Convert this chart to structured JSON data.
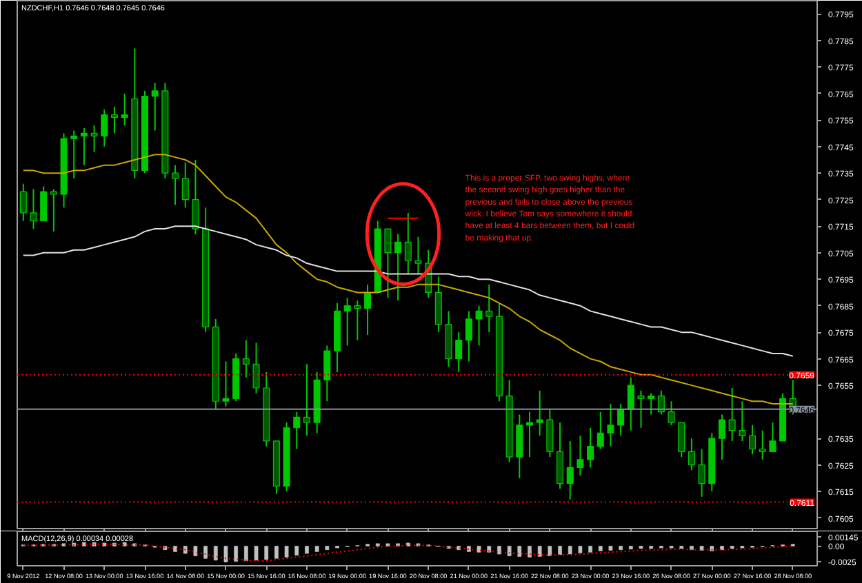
{
  "chart_data": [
    {
      "type": "candlestick",
      "title": "NZDCHF,H1  0.7646 0.7648 0.7645 0.7646",
      "categories": [
        "9 Nov 2012",
        null,
        null,
        null,
        "12 Nov 08:00",
        null,
        null,
        null,
        "13 Nov 00:00",
        null,
        null,
        null,
        "13 Nov 16:00",
        null,
        null,
        null,
        "14 Nov 08:00",
        null,
        null,
        null,
        "15 Nov 00:00",
        null,
        null,
        null,
        "15 Nov 16:00",
        null,
        null,
        null,
        "16 Nov 08:00",
        null,
        null,
        null,
        "19 Nov 00:00",
        null,
        null,
        null,
        "19 Nov 16:00",
        null,
        null,
        null,
        "20 Nov 08:00",
        null,
        null,
        null,
        "21 Nov 00:00",
        null,
        null,
        null,
        "21 Nov 16:00",
        null,
        null,
        null,
        "22 Nov 08:00",
        null,
        null,
        null,
        "23 Nov 00:00",
        null,
        null,
        null,
        "23 Nov 16:00",
        null,
        null,
        null,
        "26 Nov 08:00",
        null,
        null,
        null,
        "27 Nov 00:00",
        null,
        null,
        null,
        "27 Nov 16:00",
        null,
        null,
        null,
        "28 Nov 08:00"
      ],
      "series": [
        {
          "color": "#00c800",
          "ohlc": [
            [
              0.7728,
              0.7731,
              0.7717,
              0.772
            ],
            [
              0.772,
              0.7729,
              0.7714,
              0.7717
            ],
            [
              0.7717,
              0.773,
              0.7717,
              0.7728
            ],
            [
              0.7728,
              0.7729,
              0.7713,
              0.7727
            ],
            [
              0.7727,
              0.775,
              0.7722,
              0.7748
            ],
            [
              0.7748,
              0.7751,
              0.7733,
              0.7749
            ],
            [
              0.7749,
              0.7752,
              0.7738,
              0.775
            ],
            [
              0.775,
              0.7753,
              0.7743,
              0.7749
            ],
            [
              0.7749,
              0.7759,
              0.7745,
              0.7757
            ],
            [
              0.7757,
              0.776,
              0.775,
              0.7756
            ],
            [
              0.7756,
              0.7765,
              0.7753,
              0.7757
            ],
            [
              0.7763,
              0.7782,
              0.7733,
              0.7736
            ],
            [
              0.7736,
              0.7766,
              0.7735,
              0.7764
            ],
            [
              0.7764,
              0.7769,
              0.7751,
              0.7766
            ],
            [
              0.7766,
              0.7769,
              0.7733,
              0.7735
            ],
            [
              0.7735,
              0.7738,
              0.7723,
              0.7733
            ],
            [
              0.7733,
              0.7739,
              0.7722,
              0.7725
            ],
            [
              0.7725,
              0.774,
              0.7712,
              0.7714
            ],
            [
              0.7714,
              0.7722,
              0.7675,
              0.7677
            ],
            [
              0.7677,
              0.768,
              0.7646,
              0.7649
            ],
            [
              0.7649,
              0.7664,
              0.7647,
              0.765
            ],
            [
              0.765,
              0.7667,
              0.7649,
              0.7665
            ],
            [
              0.7665,
              0.7672,
              0.7658,
              0.7663
            ],
            [
              0.7663,
              0.7671,
              0.7652,
              0.7654
            ],
            [
              0.7654,
              0.766,
              0.7632,
              0.7634
            ],
            [
              0.7634,
              0.7634,
              0.7614,
              0.7617
            ],
            [
              0.7617,
              0.7641,
              0.7615,
              0.7639
            ],
            [
              0.7639,
              0.7645,
              0.7631,
              0.7643
            ],
            [
              0.7643,
              0.7663,
              0.7636,
              0.7641
            ],
            [
              0.7641,
              0.766,
              0.7637,
              0.7657
            ],
            [
              0.7657,
              0.767,
              0.7649,
              0.7668
            ],
            [
              0.7668,
              0.7686,
              0.766,
              0.7683
            ],
            [
              0.7683,
              0.7688,
              0.767,
              0.7685
            ],
            [
              0.7685,
              0.7687,
              0.7672,
              0.7684
            ],
            [
              0.7684,
              0.7693,
              0.7674,
              0.769
            ],
            [
              0.769,
              0.7717,
              0.769,
              0.7714
            ],
            [
              0.7714,
              0.7714,
              0.7688,
              0.7705
            ],
            [
              0.7705,
              0.7712,
              0.7687,
              0.7709
            ],
            [
              0.7709,
              0.772,
              0.7697,
              0.7702
            ],
            [
              0.7702,
              0.7711,
              0.7697,
              0.7701
            ],
            [
              0.7701,
              0.7706,
              0.7688,
              0.769
            ],
            [
              0.769,
              0.7696,
              0.7675,
              0.7678
            ],
            [
              0.7678,
              0.7683,
              0.7662,
              0.7665
            ],
            [
              0.7665,
              0.7675,
              0.766,
              0.7672
            ],
            [
              0.7672,
              0.7683,
              0.7664,
              0.768
            ],
            [
              0.768,
              0.7685,
              0.767,
              0.7683
            ],
            [
              0.7683,
              0.7693,
              0.7675,
              0.7681
            ],
            [
              0.7681,
              0.7686,
              0.7649,
              0.7651
            ],
            [
              0.7651,
              0.7657,
              0.7626,
              0.7628
            ],
            [
              0.7628,
              0.7644,
              0.762,
              0.764
            ],
            [
              0.764,
              0.7645,
              0.7628,
              0.7641
            ],
            [
              0.7641,
              0.7653,
              0.7636,
              0.7642
            ],
            [
              0.7642,
              0.7646,
              0.7628,
              0.763
            ],
            [
              0.763,
              0.7641,
              0.7616,
              0.7618
            ],
            [
              0.7618,
              0.7634,
              0.7612,
              0.7624
            ],
            [
              0.7624,
              0.7636,
              0.7621,
              0.7627
            ],
            [
              0.7627,
              0.7639,
              0.7624,
              0.7632
            ],
            [
              0.7632,
              0.7645,
              0.7631,
              0.7637
            ],
            [
              0.7637,
              0.7648,
              0.7632,
              0.764
            ],
            [
              0.764,
              0.7648,
              0.7636,
              0.7646
            ],
            [
              0.7646,
              0.7658,
              0.7638,
              0.7655
            ],
            [
              0.7651,
              0.7653,
              0.7639,
              0.765
            ],
            [
              0.765,
              0.7652,
              0.7644,
              0.7651
            ],
            [
              0.7651,
              0.7653,
              0.7644,
              0.7645
            ],
            [
              0.7645,
              0.7649,
              0.764,
              0.7641
            ],
            [
              0.7641,
              0.7641,
              0.7628,
              0.763
            ],
            [
              0.763,
              0.7635,
              0.7623,
              0.7625
            ],
            [
              0.7625,
              0.7631,
              0.7613,
              0.7618
            ],
            [
              0.7618,
              0.7637,
              0.7615,
              0.7635
            ],
            [
              0.7635,
              0.7644,
              0.7627,
              0.7642
            ],
            [
              0.7642,
              0.7654,
              0.7634,
              0.7638
            ],
            [
              0.7638,
              0.7649,
              0.7634,
              0.7636
            ],
            [
              0.7636,
              0.764,
              0.7629,
              0.7631
            ],
            [
              0.7631,
              0.7638,
              0.7627,
              0.763
            ],
            [
              0.763,
              0.7641,
              0.763,
              0.7634
            ],
            [
              0.7634,
              0.7652,
              0.7634,
              0.765
            ],
            [
              0.765,
              0.7657,
              0.7644,
              0.7646
            ]
          ]
        },
        {
          "type": "line",
          "color": "#c8a800",
          "values": [
            0.7736,
            0.7736,
            0.7735,
            0.7735,
            0.7735,
            0.7736,
            0.7736,
            0.7737,
            0.7738,
            0.7738,
            0.7739,
            0.774,
            0.7741,
            0.7742,
            0.7742,
            0.7741,
            0.774,
            0.7738,
            0.7734,
            0.773,
            0.7726,
            0.7724,
            0.7721,
            0.7718,
            0.7713,
            0.7708,
            0.7705,
            0.7701,
            0.7698,
            0.7695,
            0.7694,
            0.7692,
            0.7691,
            0.769,
            0.769,
            0.769,
            0.7691,
            0.7692,
            0.7692,
            0.7693,
            0.7693,
            0.7693,
            0.7692,
            0.7691,
            0.769,
            0.7689,
            0.7688,
            0.7686,
            0.7684,
            0.7681,
            0.7679,
            0.7676,
            0.7674,
            0.7672,
            0.7669,
            0.7667,
            0.7665,
            0.7664,
            0.7662,
            0.7661,
            0.766,
            0.7659,
            0.7659,
            0.7658,
            0.7657,
            0.7656,
            0.7655,
            0.7654,
            0.7653,
            0.7652,
            0.7651,
            0.765,
            0.7649,
            0.7649,
            0.7648,
            0.7648,
            0.7648
          ]
        },
        {
          "type": "line",
          "color": "#e0e0e0",
          "values": [
            0.7704,
            0.7704,
            0.7705,
            0.7705,
            0.7705,
            0.7706,
            0.7706,
            0.7707,
            0.7708,
            0.7709,
            0.771,
            0.7711,
            0.7713,
            0.7714,
            0.7714,
            0.7715,
            0.7715,
            0.7715,
            0.7714,
            0.7713,
            0.7712,
            0.7711,
            0.771,
            0.7708,
            0.7707,
            0.7706,
            0.7704,
            0.7703,
            0.7701,
            0.77,
            0.7699,
            0.7698,
            0.7698,
            0.7698,
            0.7698,
            0.7698,
            0.7697,
            0.7697,
            0.7697,
            0.7697,
            0.7697,
            0.7697,
            0.7697,
            0.7696,
            0.7696,
            0.7695,
            0.7695,
            0.7694,
            0.7693,
            0.7692,
            0.7691,
            0.7689,
            0.7688,
            0.7687,
            0.7686,
            0.7685,
            0.7683,
            0.7682,
            0.7681,
            0.768,
            0.7679,
            0.7678,
            0.7677,
            0.7677,
            0.7676,
            0.7675,
            0.7675,
            0.7674,
            0.7673,
            0.7672,
            0.7671,
            0.767,
            0.7669,
            0.7668,
            0.7667,
            0.7667,
            0.7666
          ]
        },
        {
          "type": "line",
          "color": "#ff0000",
          "values": [
            null,
            null,
            null,
            null,
            null,
            null,
            null,
            null,
            null,
            null,
            null,
            null,
            null,
            null,
            null,
            null,
            null,
            null,
            null,
            null,
            null,
            null,
            null,
            null,
            null,
            null,
            null,
            null,
            null,
            null,
            null,
            null,
            null,
            null,
            null,
            null,
            0.7718,
            0.7718,
            0.7718,
            0.7718,
            null,
            null,
            null,
            null,
            null,
            null,
            null,
            null,
            null,
            null,
            null,
            null,
            null,
            null,
            null,
            null,
            null,
            null,
            null,
            null,
            null,
            null,
            null,
            null,
            null,
            null,
            null,
            null,
            null,
            null,
            null,
            null,
            null,
            null,
            null,
            null,
            null
          ]
        }
      ],
      "annotations": [
        "This is a proper SFP.  two swing highs, where the second swing high goes higher than the previous and fails to close above the previous wick.  I believe Tom says somewhere it should have at least 4 bars between them, but I could be making that up."
      ],
      "ref_lines": [
        {
          "axis": "y",
          "value": 0.7659,
          "label": "0.7659",
          "color": "#ff0000",
          "line_style": "dotted"
        },
        {
          "axis": "y",
          "value": 0.7611,
          "label": "0.7611",
          "color": "#ff0000",
          "line_style": "dotted"
        },
        {
          "axis": "y",
          "value": 0.7646,
          "label": "0.7646",
          "color": "#8890a0",
          "line_style": "solid"
        }
      ],
      "ylim": [
        0.7601,
        0.78
      ],
      "yticks": [
        0.7795,
        0.7785,
        0.7775,
        0.7765,
        0.7755,
        0.7745,
        0.7735,
        0.7725,
        0.7715,
        0.7705,
        0.7695,
        0.7685,
        0.7675,
        0.7665,
        0.7655,
        0.7635,
        0.7625,
        0.7615,
        0.7605
      ],
      "tick_labels": "y"
    },
    {
      "type": "bar",
      "title": "MACD(12,26,9) 0.00034 0.00028",
      "categories": [
        "9 Nov 2012",
        null,
        null,
        null,
        "12 Nov 08:00",
        null,
        null,
        null,
        "13 Nov 00:00",
        null,
        null,
        null,
        "13 Nov 16:00",
        null,
        null,
        null,
        "14 Nov 08:00",
        null,
        null,
        null,
        "15 Nov 00:00",
        null,
        null,
        null,
        "15 Nov 16:00",
        null,
        null,
        null,
        "16 Nov 08:00",
        null,
        null,
        null,
        "19 Nov 00:00",
        null,
        null,
        null,
        "19 Nov 16:00",
        null,
        null,
        null,
        "20 Nov 08:00",
        null,
        null,
        null,
        "21 Nov 00:00",
        null,
        null,
        null,
        "21 Nov 16:00",
        null,
        null,
        null,
        "22 Nov 08:00",
        null,
        null,
        null,
        "23 Nov 00:00",
        null,
        null,
        null,
        "23 Nov 16:00",
        null,
        null,
        null,
        "26 Nov 08:00",
        null,
        null,
        null,
        "27 Nov 00:00",
        null,
        null,
        null,
        "27 Nov 16:00",
        null,
        null,
        null,
        "28 Nov 08:00"
      ],
      "series": [
        {
          "color": "#c0c0c0",
          "values": [
            0.0002,
            0.0002,
            0.0003,
            0.0003,
            0.0004,
            0.0005,
            0.0006,
            0.0006,
            0.0005,
            0.0005,
            0.0006,
            0.0004,
            0.0002,
            -0.0002,
            -0.0006,
            -0.0009,
            -0.0012,
            -0.0016,
            -0.002,
            -0.0023,
            -0.0026,
            -0.0025,
            -0.0024,
            -0.0023,
            -0.0022,
            -0.002,
            -0.0018,
            -0.0015,
            -0.0012,
            -0.0009,
            -0.0006,
            -0.0003,
            -0.0001,
            0.0001,
            0.0003,
            0.0004,
            0.0004,
            0.0004,
            0.0005,
            0.0004,
            0.0002,
            -0.0001,
            -0.0004,
            -0.0006,
            -0.0009,
            -0.001,
            -0.001,
            -0.0013,
            -0.0016,
            -0.0017,
            -0.0018,
            -0.0017,
            -0.0016,
            -0.0014,
            -0.0013,
            -0.0011,
            -0.001,
            -0.0008,
            -0.0007,
            -0.0006,
            -0.0005,
            -0.0004,
            -0.0004,
            -0.0003,
            -0.0003,
            -0.0004,
            -0.0006,
            -0.0007,
            -0.0008,
            -0.0006,
            -0.0004,
            -0.0003,
            -0.0002,
            -0.0001,
            0.0001,
            0.0002,
            0.0003
          ]
        },
        {
          "type": "line",
          "color": "#ff0000",
          "line_style": "dotted",
          "values": [
            0.0001,
            0.0001,
            0.0002,
            0.0002,
            0.0002,
            0.0002,
            0.0003,
            0.0003,
            0.0003,
            0.0003,
            0.0002,
            0.0002,
            0.0002,
            0,
            -0.0002,
            -0.0004,
            -0.0006,
            -0.001,
            -0.0013,
            -0.0017,
            -0.002,
            -0.0021,
            -0.0023,
            -0.0024,
            -0.0024,
            -0.0022,
            -0.002,
            -0.0018,
            -0.0016,
            -0.0014,
            -0.0012,
            -0.001,
            -0.0008,
            -0.0006,
            -0.0004,
            -0.0002,
            0,
            0,
            0.0001,
            0.0001,
            0.0001,
            0,
            -0.0002,
            -0.0003,
            -0.0005,
            -0.0007,
            -0.0008,
            -0.001,
            -0.0011,
            -0.0012,
            -0.0013,
            -0.0014,
            -0.0015,
            -0.0014,
            -0.0014,
            -0.0013,
            -0.0012,
            -0.0011,
            -0.001,
            -0.0009,
            -0.0008,
            -0.0007,
            -0.0006,
            -0.0006,
            -0.0005,
            -0.0005,
            -0.0006,
            -0.0006,
            -0.0006,
            -0.0006,
            -0.0005,
            -0.0005,
            -0.0004,
            -0.0003,
            -0.0002,
            -0.0001,
            0
          ]
        }
      ],
      "ylim": [
        -0.0032,
        0.0024
      ],
      "yticks": [
        0.00145,
        {
          "value": 0,
          "label": "0.00"
        },
        -0.0025
      ]
    }
  ]
}
